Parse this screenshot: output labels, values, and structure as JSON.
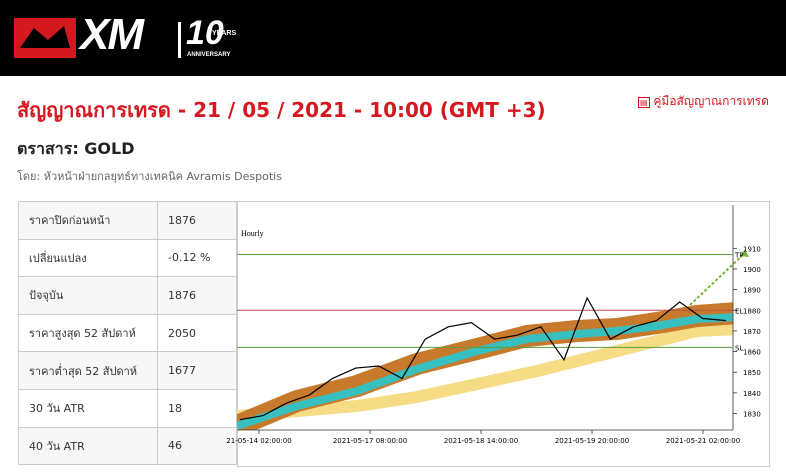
{
  "header": {
    "logo": "XM",
    "badge_number": "10",
    "badge_years": "YEARS",
    "badge_anniversary": "ANNIVERSARY"
  },
  "guide_link": "คู่มือสัญญาณการเทรด",
  "title": "สัญญาณการเทรด - 21 / 05 / 2021 - 10:00 (GMT +3)",
  "instrument": "ตราสาร: GOLD",
  "author": "โดย: หัวหน้าฝ่ายกลยุทธ์ทางเทคนิค Avramis Despotis",
  "table": {
    "rows": [
      [
        "ราคาปิดก่อนหน้า",
        "1876"
      ],
      [
        "เปลี่ยนแปลง",
        "-0.12 %"
      ],
      [
        "ปัจจุบัน",
        "1876"
      ],
      [
        "ราคาสูงสุด 52 สัปดาห์",
        "2050"
      ],
      [
        "ราคาต่ำสุด 52 สัปดาห์",
        "1677"
      ],
      [
        "30 วัน ATR",
        "18"
      ],
      [
        "40 วัน ATR",
        "46"
      ]
    ]
  },
  "chart_data": {
    "type": "line",
    "title": "Hourly",
    "xtick_labels": [
      "21-05-14 02:00:00",
      "2021-05-17 08:00:00",
      "2021-05-18 14:00:00",
      "2021-05-19 20:00:00",
      "2021-05-21 02:00:00"
    ],
    "series": [
      {
        "color": "#000000",
        "values": [
          1827,
          1829,
          1835,
          1839,
          1847,
          1852,
          1853,
          1847,
          1866,
          1872,
          1874,
          1866,
          1868,
          1872,
          1856,
          1886,
          1866,
          1872,
          1875,
          1884,
          1876,
          1875
        ]
      }
    ],
    "levels": [
      {
        "label": "TP",
        "value": 1907,
        "color": "#5a9e3c"
      },
      {
        "label": "EL",
        "value": 1880,
        "color": "#c0504d"
      },
      {
        "label": "SL",
        "value": 1862,
        "color": "#5a9e3c"
      }
    ],
    "ylim": [
      1822,
      1931
    ],
    "yticks": [
      1830,
      1840,
      1850,
      1860,
      1870,
      1880,
      1890,
      1900,
      1910
    ]
  }
}
